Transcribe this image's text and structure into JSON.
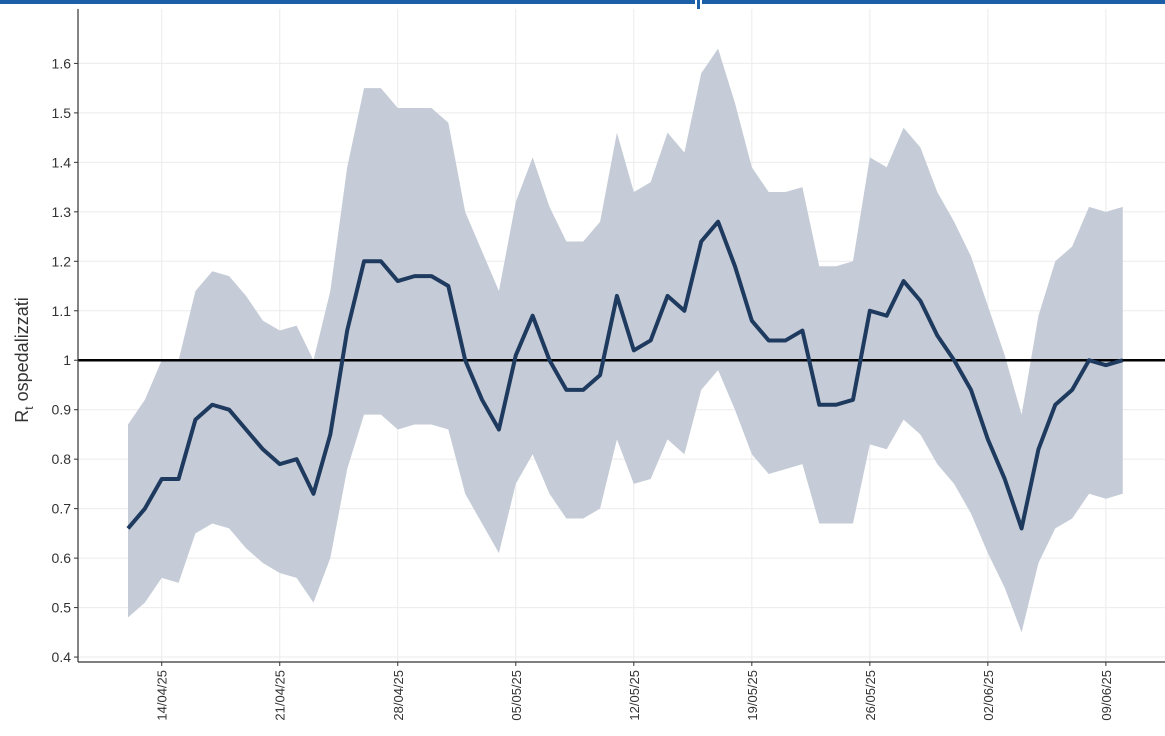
{
  "chart_data": {
    "type": "line",
    "y_label": {
      "symbol": "R",
      "subscript": "t",
      "text": " ospedalizzati"
    },
    "x": [
      "12/04/25",
      "13/04/25",
      "14/04/25",
      "15/04/25",
      "16/04/25",
      "17/04/25",
      "18/04/25",
      "19/04/25",
      "20/04/25",
      "21/04/25",
      "22/04/25",
      "23/04/25",
      "24/04/25",
      "25/04/25",
      "26/04/25",
      "27/04/25",
      "28/04/25",
      "29/04/25",
      "30/04/25",
      "01/05/25",
      "02/05/25",
      "03/05/25",
      "04/05/25",
      "05/05/25",
      "06/05/25",
      "07/05/25",
      "08/05/25",
      "09/05/25",
      "10/05/25",
      "11/05/25",
      "12/05/25",
      "13/05/25",
      "14/05/25",
      "15/05/25",
      "16/05/25",
      "17/05/25",
      "18/05/25",
      "19/05/25",
      "20/05/25",
      "21/05/25",
      "22/05/25",
      "23/05/25",
      "24/05/25",
      "25/05/25",
      "26/05/25",
      "27/05/25",
      "28/05/25",
      "29/05/25",
      "30/05/25",
      "31/05/25",
      "01/06/25",
      "02/06/25",
      "03/06/25",
      "04/06/25",
      "05/06/25",
      "06/06/25",
      "07/06/25",
      "08/06/25",
      "09/06/25",
      "10/06/25"
    ],
    "series": [
      {
        "name": "Rt",
        "color": "#1f3a5f",
        "values": [
          0.66,
          0.7,
          0.76,
          0.76,
          0.88,
          0.91,
          0.9,
          0.86,
          0.82,
          0.79,
          0.8,
          0.73,
          0.85,
          1.06,
          1.2,
          1.2,
          1.16,
          1.17,
          1.17,
          1.15,
          1.0,
          0.92,
          0.86,
          1.01,
          1.09,
          1.0,
          0.94,
          0.94,
          0.97,
          1.13,
          1.02,
          1.04,
          1.13,
          1.1,
          1.24,
          1.28,
          1.19,
          1.08,
          1.04,
          1.04,
          1.06,
          0.91,
          0.91,
          0.92,
          1.1,
          1.09,
          1.16,
          1.12,
          1.05,
          1.0,
          0.94,
          0.84,
          0.76,
          0.66,
          0.82,
          0.91,
          0.94,
          1.0,
          0.99,
          1.0
        ],
        "lower": [
          0.48,
          0.51,
          0.56,
          0.55,
          0.65,
          0.67,
          0.66,
          0.62,
          0.59,
          0.57,
          0.56,
          0.51,
          0.6,
          0.78,
          0.89,
          0.89,
          0.86,
          0.87,
          0.87,
          0.86,
          0.73,
          0.67,
          0.61,
          0.75,
          0.81,
          0.73,
          0.68,
          0.68,
          0.7,
          0.84,
          0.75,
          0.76,
          0.84,
          0.81,
          0.94,
          0.98,
          0.9,
          0.81,
          0.77,
          0.78,
          0.79,
          0.67,
          0.67,
          0.67,
          0.83,
          0.82,
          0.88,
          0.85,
          0.79,
          0.75,
          0.69,
          0.61,
          0.54,
          0.45,
          0.59,
          0.66,
          0.68,
          0.73,
          0.72,
          0.73
        ],
        "upper": [
          0.87,
          0.92,
          1.0,
          1.0,
          1.14,
          1.18,
          1.17,
          1.13,
          1.08,
          1.06,
          1.07,
          1.0,
          1.14,
          1.39,
          1.55,
          1.55,
          1.51,
          1.51,
          1.51,
          1.48,
          1.3,
          1.22,
          1.14,
          1.32,
          1.41,
          1.31,
          1.24,
          1.24,
          1.28,
          1.46,
          1.34,
          1.36,
          1.46,
          1.42,
          1.58,
          1.63,
          1.52,
          1.39,
          1.34,
          1.34,
          1.35,
          1.19,
          1.19,
          1.2,
          1.41,
          1.39,
          1.47,
          1.43,
          1.34,
          1.28,
          1.21,
          1.11,
          1.01,
          0.89,
          1.09,
          1.2,
          1.23,
          1.31,
          1.3,
          1.31
        ],
        "band_color": "#c5ccd7"
      }
    ],
    "hline": 1.0,
    "xticks": [
      "14/04/25",
      "21/04/25",
      "28/04/25",
      "05/05/25",
      "12/05/25",
      "19/05/25",
      "26/05/25",
      "02/06/25",
      "09/06/25"
    ],
    "ylim": [
      0.39,
      1.71
    ],
    "yticks": [
      0.4,
      0.5,
      0.6,
      0.7,
      0.8,
      0.9,
      1.0,
      1.1,
      1.2,
      1.3,
      1.4,
      1.5,
      1.6
    ],
    "grid": true
  }
}
